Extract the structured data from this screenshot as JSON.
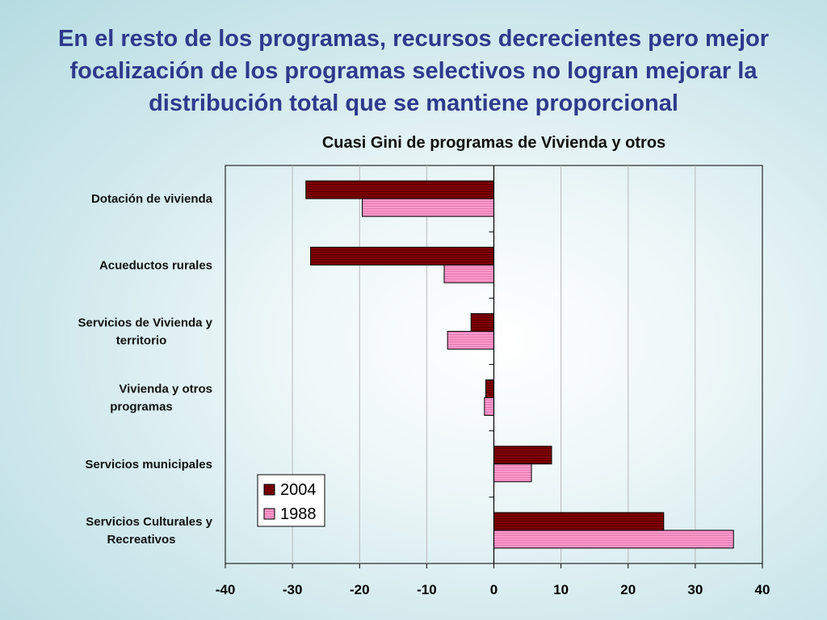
{
  "slide": {
    "title": "En el resto de los programas, recursos decrecientes pero mejor focalización de los programas selectivos no logran mejorar la distribución total que se mantiene proporcional"
  },
  "colors": {
    "series_2004": "#800000",
    "series_1988": "#ff99cc",
    "title": "#2e3a8c"
  },
  "chart_data": {
    "type": "bar",
    "orientation": "horizontal",
    "title": "Cuasi Gini de programas de Vivienda y otros",
    "categories": [
      [
        "Dotación de vivienda"
      ],
      [
        "Acueductos rurales"
      ],
      [
        "Servicios de Vivienda y",
        "territorio"
      ],
      [
        "Vivienda y otros",
        "programas"
      ],
      [
        "Servicios municipales"
      ],
      [
        "Servicios Culturales y",
        "Recreativos"
      ]
    ],
    "series": [
      {
        "name": "2004",
        "values": [
          -28,
          -27.3,
          -3.4,
          -1.2,
          8.6,
          25.3
        ]
      },
      {
        "name": "1988",
        "values": [
          -19.6,
          -7.4,
          -6.9,
          -1.4,
          5.6,
          35.7
        ]
      }
    ],
    "xlim": [
      -40,
      40
    ],
    "xticks": [
      "-40",
      "-30",
      "-20",
      "-10",
      "0",
      "10",
      "20",
      "30",
      "40"
    ],
    "grid": true,
    "legend_position": "bottom-left",
    "xlabel": "",
    "ylabel": ""
  }
}
